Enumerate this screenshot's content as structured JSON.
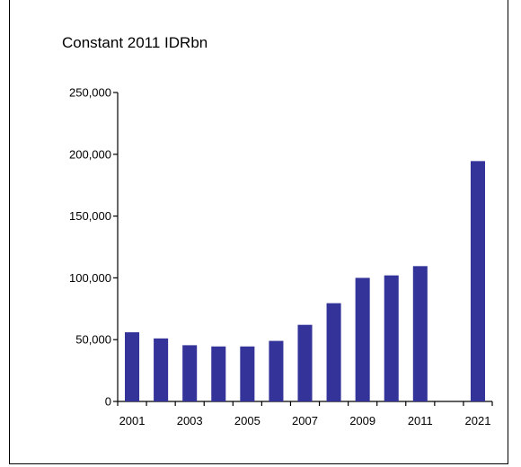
{
  "chart_data": {
    "type": "bar",
    "title": "Constant 2011 IDRbn",
    "xlabel": "",
    "ylabel": "",
    "ylim": [
      0,
      250000
    ],
    "y_ticks": [
      0,
      50000,
      100000,
      150000,
      200000,
      250000
    ],
    "y_tick_labels": [
      "0",
      "50,000",
      "100,000",
      "150,000",
      "200,000",
      "250,000"
    ],
    "categories": [
      "2001",
      "2002",
      "2003",
      "2004",
      "2005",
      "2006",
      "2007",
      "2008",
      "2009",
      "2010",
      "2011",
      "2012",
      "2021"
    ],
    "category_labels": [
      "2001",
      "",
      "2003",
      "",
      "2005",
      "",
      "2007",
      "",
      "2009",
      "",
      "2011",
      "",
      "2021"
    ],
    "values": [
      56000,
      51000,
      45500,
      44500,
      44500,
      49000,
      62000,
      79500,
      100000,
      102000,
      109500,
      null,
      194500
    ],
    "bar_color": "#333399",
    "grid": false
  }
}
